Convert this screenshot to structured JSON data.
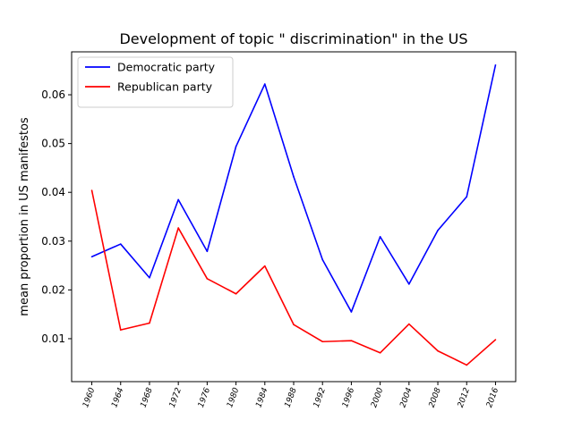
{
  "chart_data": {
    "type": "line",
    "title": "Development of topic \" discrimination\" in the US",
    "xlabel": "",
    "ylabel": "mean proportion in US manifestos",
    "x": [
      1960,
      1964,
      1968,
      1972,
      1976,
      1980,
      1984,
      1988,
      1992,
      1996,
      2000,
      2004,
      2008,
      2012,
      2016
    ],
    "x_tick_labels": [
      "1960",
      "1964",
      "1968",
      "1972",
      "1976",
      "1980",
      "1984",
      "1988",
      "1992",
      "1996",
      "2000",
      "2004",
      "2008",
      "2012",
      "2016"
    ],
    "y_ticks": [
      0.01,
      0.02,
      0.03,
      0.04,
      0.05,
      0.06
    ],
    "y_tick_labels": [
      "0.01",
      "0.02",
      "0.03",
      "0.04",
      "0.05",
      "0.06"
    ],
    "xlim": [
      1957.2,
      2018.8
    ],
    "ylim": [
      0.0012,
      0.0688
    ],
    "grid": false,
    "legend_position": "top-left",
    "series": [
      {
        "name": "Democratic party",
        "color": "#0000ff",
        "values": [
          0.0268,
          0.0294,
          0.0225,
          0.0385,
          0.0279,
          0.0494,
          0.0622,
          0.0432,
          0.0262,
          0.0155,
          0.0309,
          0.0212,
          0.0322,
          0.0391,
          0.0661
        ]
      },
      {
        "name": "Republican party",
        "color": "#ff0000",
        "values": [
          0.0404,
          0.0118,
          0.0132,
          0.0327,
          0.0223,
          0.0192,
          0.0249,
          0.0129,
          0.0094,
          0.0096,
          0.0071,
          0.013,
          0.0075,
          0.0046,
          0.0098
        ]
      }
    ]
  }
}
